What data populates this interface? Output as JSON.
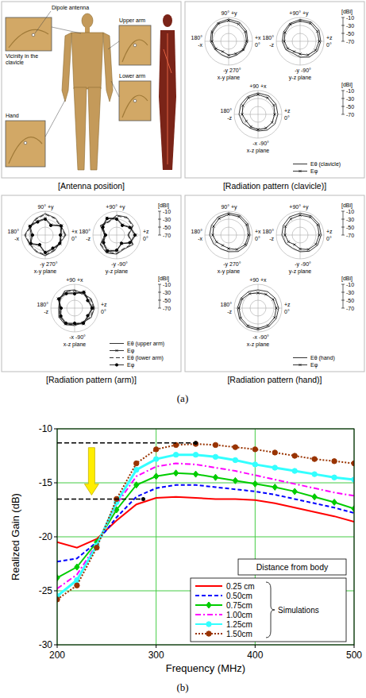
{
  "figure": {
    "panel_labels": [
      "(a)",
      "(b)"
    ],
    "antenna_position": {
      "caption": "[Antenna position]",
      "labels": {
        "dipole": "Dipole antenna",
        "clavicle": "Vicinity in the clavicle",
        "upper_arm": "Upper arm",
        "lower_arm": "Lower arm",
        "hand": "Hand"
      }
    }
  },
  "chart_data": [
    {
      "type": "polar",
      "title": "[Radiation pattern (clavicle)]",
      "y_label": "[dBi]",
      "x": [
        0,
        30,
        60,
        90,
        120,
        150,
        180,
        210,
        240,
        270,
        300,
        330
      ],
      "ylim": [
        -70,
        -10
      ],
      "yticks": [
        -10,
        -30,
        -50,
        -70
      ],
      "legend": "lower right",
      "series": [
        {
          "name": "Eθ (clavicle)",
          "color": "#000000",
          "line_style": "solid",
          "marker": "none"
        },
        {
          "name": "Eφ",
          "color": "#000000",
          "line_style": "solid",
          "marker": "x"
        }
      ],
      "planes": [
        {
          "name": "x-y plane",
          "direction_labels": [
            [
              "+x",
              "0°"
            ],
            [
              "90°",
              "+y"
            ],
            [
              "180°",
              "-x"
            ],
            [
              "-y",
              "270°"
            ]
          ],
          "values": [
            [
              -22,
              -18,
              -15,
              -14,
              -16,
              -20,
              -24,
              -30,
              -32,
              -28,
              -30,
              -26
            ],
            [
              -25,
              -22,
              -20,
              -18,
              -19,
              -23,
              -28,
              -33,
              -40,
              -35,
              -34,
              -28
            ]
          ]
        },
        {
          "name": "y-z plane",
          "direction_labels": [
            [
              "+z",
              "0°"
            ],
            [
              "+90°",
              "+y"
            ],
            [
              "180°",
              "-z"
            ],
            [
              "-y",
              "-90°"
            ]
          ],
          "values": [
            [
              -18,
              -15,
              -14,
              -15,
              -18,
              -22,
              -25,
              -28,
              -35,
              -30,
              -24,
              -20
            ],
            [
              -22,
              -20,
              -18,
              -19,
              -21,
              -26,
              -30,
              -34,
              -40,
              -38,
              -30,
              -25
            ]
          ]
        },
        {
          "name": "x-z plane",
          "direction_labels": [
            [
              "+z",
              "0°"
            ],
            [
              "+90",
              "+x"
            ],
            [
              "180°",
              "-z"
            ],
            [
              "-x",
              "-90°"
            ]
          ],
          "values": [
            [
              -20,
              -18,
              -16,
              -16,
              -18,
              -20,
              -22,
              -26,
              -30,
              -28,
              -24,
              -21
            ],
            [
              -28,
              -24,
              -22,
              -20,
              -22,
              -26,
              -30,
              -36,
              -34,
              -32,
              -30,
              -29
            ]
          ]
        }
      ]
    },
    {
      "type": "polar",
      "title": "[Radiation pattern (arm)]",
      "y_label": "[dBi]",
      "x": [
        0,
        30,
        60,
        90,
        120,
        150,
        180,
        210,
        240,
        270,
        300,
        330
      ],
      "ylim": [
        -70,
        -10
      ],
      "yticks": [
        -10,
        -30,
        -50,
        -70
      ],
      "legend": "lower right",
      "series": [
        {
          "name": "Eθ (upper arm)",
          "color": "#000000",
          "line_style": "solid",
          "marker": "none"
        },
        {
          "name": "Eφ",
          "color": "#000000",
          "line_style": "solid",
          "marker": "x"
        },
        {
          "name": "Eθ (lower arm)",
          "color": "#000000",
          "line_style": "dashed",
          "marker": "none"
        },
        {
          "name": "Eφ",
          "color": "#000000",
          "line_style": "solid",
          "marker": "circle"
        }
      ],
      "planes": [
        {
          "name": "x-y plane",
          "direction_labels": [
            [
              "+x",
              "0°"
            ],
            [
              "90°",
              "+y"
            ],
            [
              "180°",
              "-x"
            ],
            [
              "-y",
              "270°"
            ]
          ],
          "values": [
            [
              -18,
              -24,
              -20,
              -16,
              -22,
              -26,
              -18,
              -24,
              -22,
              -18,
              -24,
              -28
            ],
            [
              -30,
              -22,
              -40,
              -28,
              -30,
              -24,
              -35,
              -26,
              -40,
              -24,
              -30,
              -26
            ],
            [
              -20,
              -26,
              -22,
              -18,
              -24,
              -28,
              -20,
              -26,
              -24,
              -20,
              -26,
              -30
            ],
            [
              -32,
              -24,
              -42,
              -30,
              -32,
              -26,
              -38,
              -28,
              -42,
              -26,
              -32,
              -28
            ]
          ]
        },
        {
          "name": "y-z plane",
          "direction_labels": [
            [
              "+z",
              "0°"
            ],
            [
              "+90°",
              "+y"
            ],
            [
              "180°",
              "-z"
            ],
            [
              "-y",
              "-90°"
            ]
          ],
          "values": [
            [
              -40,
              -22,
              -18,
              -20,
              -30,
              -22,
              -40,
              -22,
              -18,
              -22,
              -30,
              -22
            ],
            [
              -22,
              -30,
              -40,
              -28,
              -20,
              -28,
              -40,
              -30,
              -22,
              -30,
              -45,
              -30
            ],
            [
              -42,
              -24,
              -20,
              -22,
              -32,
              -24,
              -42,
              -24,
              -20,
              -24,
              -32,
              -24
            ],
            [
              -24,
              -32,
              -42,
              -30,
              -22,
              -30,
              -42,
              -32,
              -24,
              -32,
              -46,
              -32
            ]
          ]
        },
        {
          "name": "x-z plane",
          "direction_labels": [
            [
              "+z",
              "0°"
            ],
            [
              "+90",
              "+x"
            ],
            [
              "180°",
              "-z"
            ],
            [
              "-x",
              "-90°"
            ]
          ],
          "values": [
            [
              -20,
              -22,
              -28,
              -24,
              -20,
              -26,
              -30,
              -24,
              -22,
              -26,
              -28,
              -22
            ],
            [
              -24,
              -30,
              -22,
              -32,
              -26,
              -22,
              -34,
              -28,
              -24,
              -30,
              -24,
              -30
            ],
            [
              -22,
              -24,
              -30,
              -26,
              -22,
              -28,
              -32,
              -26,
              -24,
              -28,
              -30,
              -24
            ],
            [
              -26,
              -32,
              -24,
              -34,
              -28,
              -24,
              -36,
              -30,
              -26,
              -32,
              -26,
              -32
            ]
          ]
        }
      ]
    },
    {
      "type": "polar",
      "title": "[Radiation pattern (hand)]",
      "y_label": "[dBi]",
      "x": [
        0,
        30,
        60,
        90,
        120,
        150,
        180,
        210,
        240,
        270,
        300,
        330
      ],
      "ylim": [
        -70,
        -10
      ],
      "yticks": [
        -10,
        -30,
        -50,
        -70
      ],
      "legend": "lower right",
      "series": [
        {
          "name": "Eθ (hand)",
          "color": "#000000",
          "line_style": "solid",
          "marker": "none"
        },
        {
          "name": "Eφ",
          "color": "#000000",
          "line_style": "solid",
          "marker": "x"
        }
      ],
      "planes": [
        {
          "name": "x-y plane",
          "direction_labels": [
            [
              "+x",
              "0°"
            ],
            [
              "90°",
              "+y"
            ],
            [
              "180°",
              "-x"
            ],
            [
              "-y",
              "270°"
            ]
          ],
          "values": [
            [
              -16,
              -14,
              -13,
              -14,
              -17,
              -20,
              -22,
              -26,
              -30,
              -28,
              -22,
              -18
            ],
            [
              -20,
              -18,
              -17,
              -18,
              -22,
              -26,
              -30,
              -35,
              -40,
              -36,
              -28,
              -22
            ]
          ]
        },
        {
          "name": "y-z plane",
          "direction_labels": [
            [
              "+z",
              "0°"
            ],
            [
              "+90°",
              "+y"
            ],
            [
              "180°",
              "-z"
            ],
            [
              "-y",
              "-90°"
            ]
          ],
          "values": [
            [
              -17,
              -15,
              -14,
              -15,
              -17,
              -21,
              -24,
              -28,
              -32,
              -28,
              -23,
              -19
            ],
            [
              -22,
              -19,
              -18,
              -20,
              -23,
              -27,
              -32,
              -36,
              -42,
              -35,
              -28,
              -24
            ]
          ]
        },
        {
          "name": "x-z plane",
          "direction_labels": [
            [
              "+z",
              "0°"
            ],
            [
              "+90",
              "+x"
            ],
            [
              "180°",
              "-z"
            ],
            [
              "-x",
              "-90°"
            ]
          ],
          "values": [
            [
              -18,
              -20,
              -22,
              -24,
              -22,
              -20,
              -18,
              -16,
              -15,
              -15,
              -16,
              -17
            ],
            [
              -24,
              -26,
              -30,
              -32,
              -28,
              -24,
              -22,
              -20,
              -19,
              -19,
              -20,
              -22
            ]
          ]
        }
      ]
    },
    {
      "type": "line",
      "x_label": "Frequency (MHz)",
      "y_label": "Realized Gain (dB)",
      "x": [
        200,
        220,
        240,
        260,
        280,
        300,
        320,
        340,
        360,
        380,
        400,
        420,
        440,
        460,
        480,
        500
      ],
      "xlim": [
        200,
        500
      ],
      "xticks": [
        200,
        300,
        400,
        500
      ],
      "ylim": [
        -30,
        -10
      ],
      "yticks": [
        -30,
        -25,
        -20,
        -15,
        -10
      ],
      "grid": true,
      "legend": "lower right",
      "legend_title": "Distance from body",
      "legend_group": "Simulations",
      "series": [
        {
          "name": "0.25 cm",
          "color": "#ff0000",
          "line_style": "solid",
          "marker": "none",
          "values": [
            -20.5,
            -21.0,
            -20.2,
            -18.5,
            -17.0,
            -16.4,
            -16.3,
            -16.4,
            -16.5,
            -16.5,
            -16.6,
            -16.9,
            -17.3,
            -17.7,
            -18.1,
            -18.6
          ]
        },
        {
          "name": "0.50cm",
          "color": "#0000ff",
          "line_style": "dashed",
          "marker": "none",
          "values": [
            -22.3,
            -22.0,
            -20.5,
            -18.2,
            -16.3,
            -15.5,
            -15.2,
            -15.2,
            -15.4,
            -15.6,
            -15.8,
            -16.1,
            -16.5,
            -16.9,
            -17.3,
            -17.8
          ]
        },
        {
          "name": "0.75cm",
          "color": "#00cc00",
          "line_style": "solid",
          "marker": "diamond",
          "values": [
            -23.8,
            -22.8,
            -20.5,
            -17.5,
            -15.2,
            -14.4,
            -14.1,
            -14.2,
            -14.5,
            -14.8,
            -15.1,
            -15.4,
            -15.8,
            -16.3,
            -16.8,
            -17.4
          ]
        },
        {
          "name": "1.00cm",
          "color": "#ff00ff",
          "line_style": "dashdot",
          "marker": "none",
          "values": [
            -24.8,
            -23.5,
            -20.7,
            -17.0,
            -14.4,
            -13.5,
            -13.2,
            -13.3,
            -13.6,
            -13.9,
            -14.3,
            -14.7,
            -15.1,
            -15.5,
            -15.9,
            -16.2
          ]
        },
        {
          "name": "1.25cm",
          "color": "#33ffff",
          "line_style": "solid",
          "marker": "circle",
          "values": [
            -25.5,
            -24.0,
            -20.8,
            -16.8,
            -13.8,
            -12.8,
            -12.4,
            -12.4,
            -12.6,
            -12.9,
            -13.3,
            -13.6,
            -13.9,
            -14.2,
            -14.5,
            -14.7
          ]
        },
        {
          "name": "1.50cm",
          "color": "#993300",
          "line_style": "dotted",
          "marker": "circle",
          "values": [
            -25.8,
            -24.5,
            -21.0,
            -16.5,
            -13.2,
            -11.9,
            -11.5,
            -11.4,
            -11.5,
            -11.7,
            -11.9,
            -12.2,
            -12.5,
            -12.8,
            -13.0,
            -13.2
          ]
        }
      ],
      "reference_lines": [
        {
          "y": -11.3,
          "x": [
            200,
            340
          ]
        },
        {
          "y": -16.5,
          "x": [
            200,
            287
          ]
        }
      ]
    }
  ]
}
